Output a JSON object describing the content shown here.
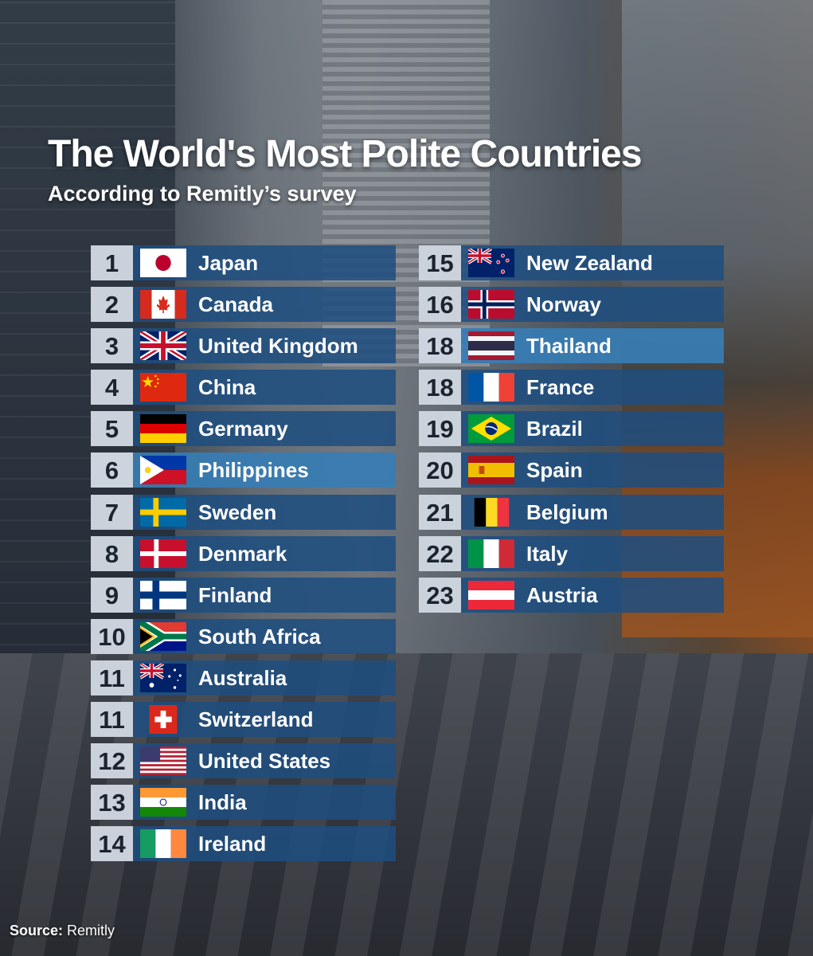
{
  "title": "The World's Most Polite Countries",
  "subtitle": "According to Remitly’s survey",
  "source": {
    "label": "Source:",
    "value": "Remitly"
  },
  "left_column": [
    {
      "rank": "1",
      "country": "Japan",
      "flag": "japan-flag-icon"
    },
    {
      "rank": "2",
      "country": "Canada",
      "flag": "canada-flag-icon"
    },
    {
      "rank": "3",
      "country": "United Kingdom",
      "flag": "uk-flag-icon"
    },
    {
      "rank": "4",
      "country": "China",
      "flag": "china-flag-icon"
    },
    {
      "rank": "5",
      "country": "Germany",
      "flag": "germany-flag-icon"
    },
    {
      "rank": "6",
      "country": "Philippines",
      "flag": "philippines-flag-icon",
      "highlighted": true
    },
    {
      "rank": "7",
      "country": "Sweden",
      "flag": "sweden-flag-icon"
    },
    {
      "rank": "8",
      "country": "Denmark",
      "flag": "denmark-flag-icon"
    },
    {
      "rank": "9",
      "country": "Finland",
      "flag": "finland-flag-icon"
    },
    {
      "rank": "10",
      "country": "South Africa",
      "flag": "south-africa-flag-icon"
    },
    {
      "rank": "11",
      "country": "Australia",
      "flag": "australia-flag-icon"
    },
    {
      "rank": "11",
      "country": "Switzerland",
      "flag": "switzerland-flag-icon"
    },
    {
      "rank": "12",
      "country": "United States",
      "flag": "usa-flag-icon"
    },
    {
      "rank": "13",
      "country": "India",
      "flag": "india-flag-icon"
    },
    {
      "rank": "14",
      "country": "Ireland",
      "flag": "ireland-flag-icon"
    }
  ],
  "right_column": [
    {
      "rank": "15",
      "country": "New Zealand",
      "flag": "new-zealand-flag-icon"
    },
    {
      "rank": "16",
      "country": "Norway",
      "flag": "norway-flag-icon"
    },
    {
      "rank": "18",
      "country": "Thailand",
      "flag": "thailand-flag-icon",
      "highlighted": true
    },
    {
      "rank": "18",
      "country": "France",
      "flag": "france-flag-icon"
    },
    {
      "rank": "19",
      "country": "Brazil",
      "flag": "brazil-flag-icon"
    },
    {
      "rank": "20",
      "country": "Spain",
      "flag": "spain-flag-icon"
    },
    {
      "rank": "21",
      "country": "Belgium",
      "flag": "belgium-flag-icon"
    },
    {
      "rank": "22",
      "country": "Italy",
      "flag": "italy-flag-icon"
    },
    {
      "rank": "23",
      "country": "Austria",
      "flag": "austria-flag-icon"
    }
  ]
}
